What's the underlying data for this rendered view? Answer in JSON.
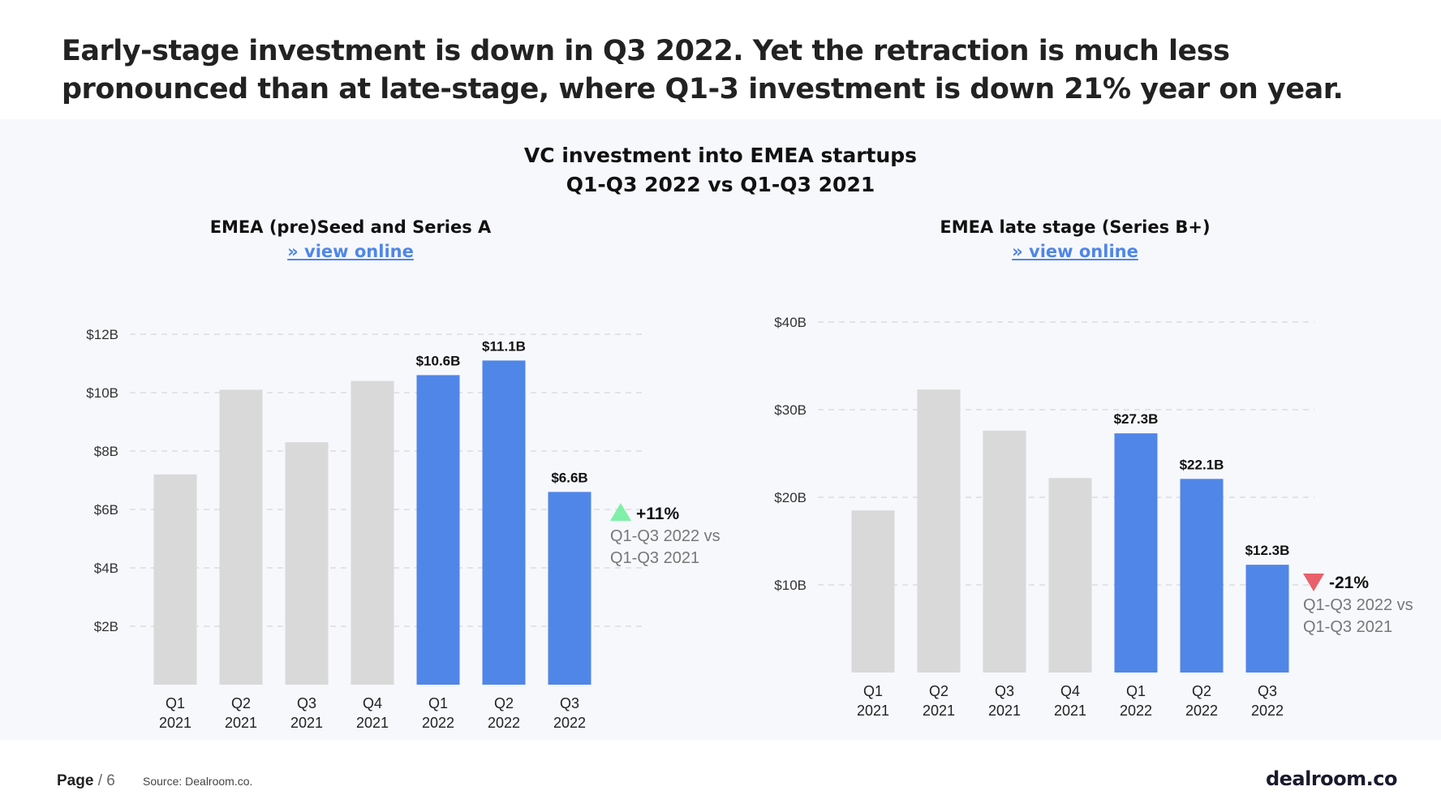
{
  "headline": "Early-stage investment is down in Q3 2022. Yet the retraction is much less pronounced than at late-stage, where Q1-3 investment is down 21% year on year.",
  "main_title_line1": "VC investment into EMEA startups",
  "main_title_line2": "Q1-Q3 2022 vs Q1-Q3 2021",
  "colors": {
    "highlight": "#5086e8",
    "muted": "#d9d9d9",
    "up": "#7ff0a8",
    "down": "#e8606a",
    "link": "#4f86e8"
  },
  "left": {
    "title": "EMEA (pre)Seed and Series A",
    "link": "» view online",
    "change_pct": "+11%",
    "change_line1": "Q1-Q3 2022 vs",
    "change_line2": "Q1-Q3 2021"
  },
  "right": {
    "title": "EMEA late stage (Series B+)",
    "link": "» view online",
    "change_pct": "-21%",
    "change_line1": "Q1-Q3 2022 vs",
    "change_line2": "Q1-Q3 2021"
  },
  "chart_data": [
    {
      "type": "bar",
      "title": "EMEA (pre)Seed and Series A",
      "categories": [
        [
          "Q1",
          "2021"
        ],
        [
          "Q2",
          "2021"
        ],
        [
          "Q3",
          "2021"
        ],
        [
          "Q4",
          "2021"
        ],
        [
          "Q1",
          "2022"
        ],
        [
          "Q2",
          "2022"
        ],
        [
          "Q3",
          "2022"
        ]
      ],
      "values": [
        7.2,
        10.1,
        8.3,
        10.4,
        10.6,
        11.1,
        6.6
      ],
      "highlighted": [
        false,
        false,
        false,
        false,
        true,
        true,
        true
      ],
      "data_labels": [
        null,
        null,
        null,
        null,
        "$10.6B",
        "$11.1B",
        "$6.6B"
      ],
      "yticks": [
        2,
        4,
        6,
        8,
        10,
        12
      ],
      "ytick_labels": [
        "$2B",
        "$4B",
        "$6B",
        "$8B",
        "$10B",
        "$12B"
      ],
      "ylim": [
        0,
        12
      ],
      "grid": true
    },
    {
      "type": "bar",
      "title": "EMEA late stage (Series B+)",
      "categories": [
        [
          "Q1",
          "2021"
        ],
        [
          "Q2",
          "2021"
        ],
        [
          "Q3",
          "2021"
        ],
        [
          "Q4",
          "2021"
        ],
        [
          "Q1",
          "2022"
        ],
        [
          "Q2",
          "2022"
        ],
        [
          "Q3",
          "2022"
        ]
      ],
      "values": [
        18.5,
        32.3,
        27.6,
        22.2,
        27.3,
        22.1,
        12.3
      ],
      "highlighted": [
        false,
        false,
        false,
        false,
        true,
        true,
        true
      ],
      "data_labels": [
        null,
        null,
        null,
        null,
        "$27.3B",
        "$22.1B",
        "$12.3B"
      ],
      "yticks": [
        10,
        20,
        30,
        40
      ],
      "ytick_labels": [
        "$10B",
        "$20B",
        "$30B",
        "$40B"
      ],
      "ylim": [
        0,
        40
      ],
      "grid": true
    }
  ],
  "footer": {
    "page_label": "Page",
    "page_sep": "/ 6",
    "source": "Source: Dealroom.co.",
    "logo": "dealroom.co"
  }
}
